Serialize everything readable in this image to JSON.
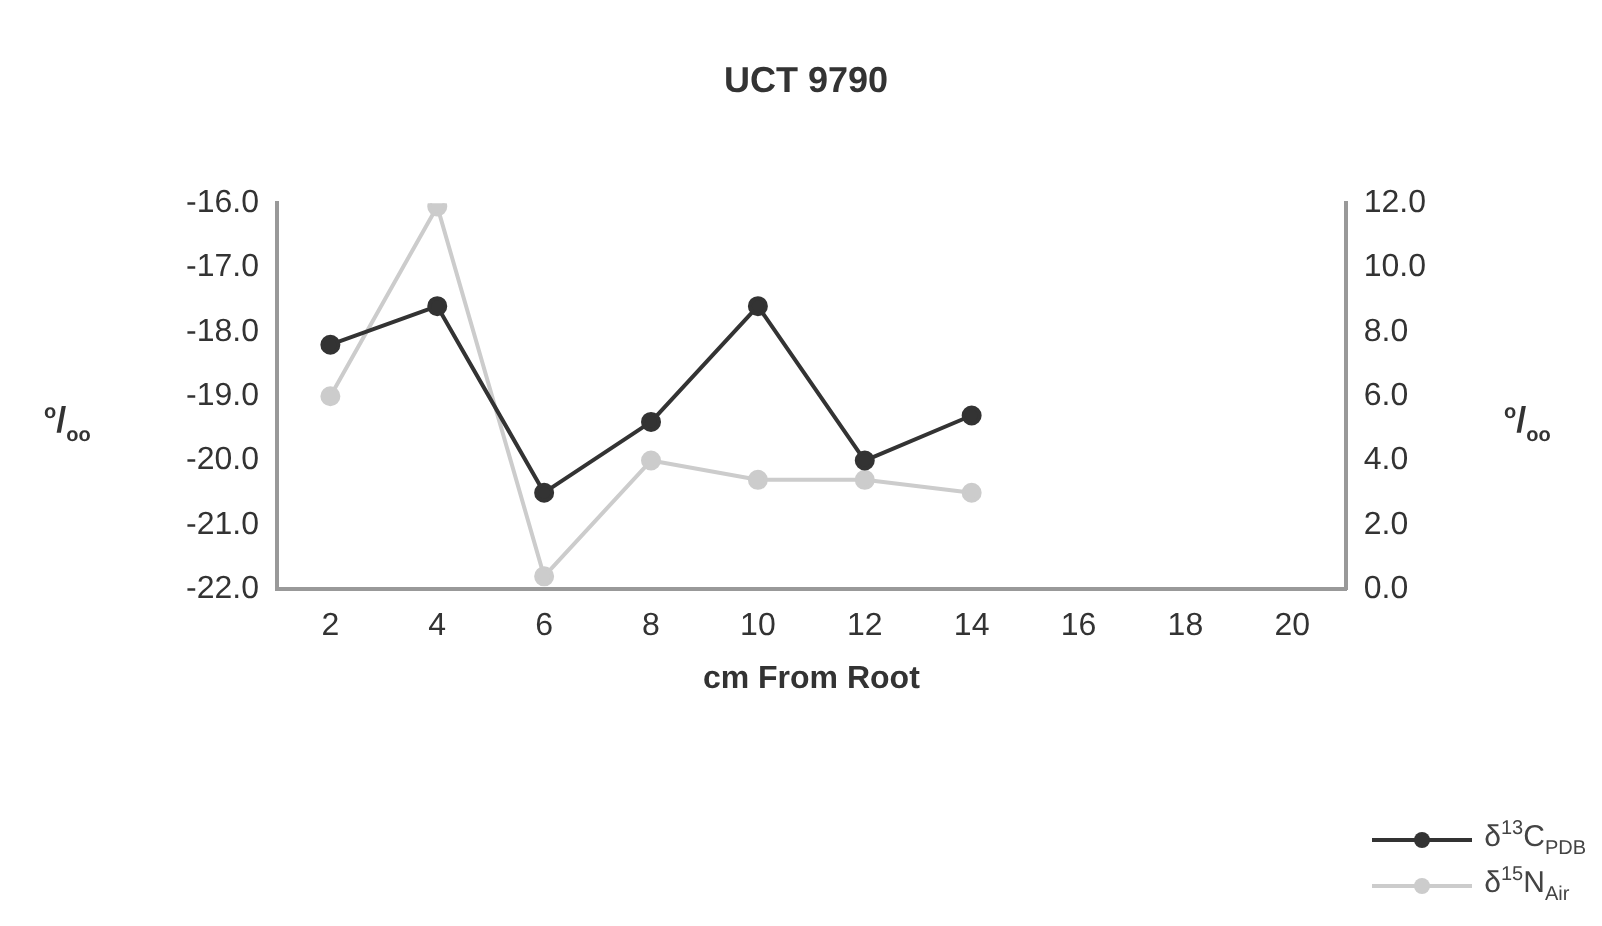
{
  "chart_data": {
    "type": "line",
    "title": "UCT 9790",
    "xlabel": "cm From Root",
    "ylabel": "$^{o}$/$_{oo}$",
    "y2label": "$^{o}$/$_{oo}$",
    "categories": [
      "2",
      "4",
      "6",
      "8",
      "10",
      "12",
      "14",
      "16",
      "18",
      "20"
    ],
    "series": [
      {
        "name": "δ$^{13}$C$_{PDB}$",
        "color": "#333333",
        "values": [
          -18.2,
          -17.6,
          -20.5,
          -19.4,
          -17.6,
          -20.0,
          -19.3,
          null,
          null,
          null
        ]
      },
      {
        "name": "δ$^{15}$N$_{Air}$",
        "color": "#cccccc",
        "axis": "y2",
        "values": [
          6.0,
          11.9,
          0.4,
          4.0,
          3.4,
          3.4,
          3.0,
          null,
          null,
          null
        ]
      }
    ],
    "ylim": [
      -22,
      -16
    ],
    "yticks": [
      {
        "value": -22,
        "label": "-22.0"
      },
      {
        "value": -21,
        "label": "-21.0"
      },
      {
        "value": -20,
        "label": "-20.0"
      },
      {
        "value": -19,
        "label": "-19.0"
      },
      {
        "value": -18,
        "label": "-18.0"
      },
      {
        "value": -17,
        "label": "-17.0"
      },
      {
        "value": -16,
        "label": "-16.0"
      }
    ],
    "y2lim": [
      0,
      12
    ],
    "y2ticks": [
      {
        "value": 0,
        "label": "0.0"
      },
      {
        "value": 2,
        "label": "2.0"
      },
      {
        "value": 4,
        "label": "4.0"
      },
      {
        "value": 6,
        "label": "6.0"
      },
      {
        "value": 8,
        "label": "8.0"
      },
      {
        "value": 10,
        "label": "10.0"
      },
      {
        "value": 12,
        "label": "12.0"
      }
    ],
    "grid": false,
    "legend": "bottom right",
    "marker": "circle",
    "line_style": "solid"
  }
}
